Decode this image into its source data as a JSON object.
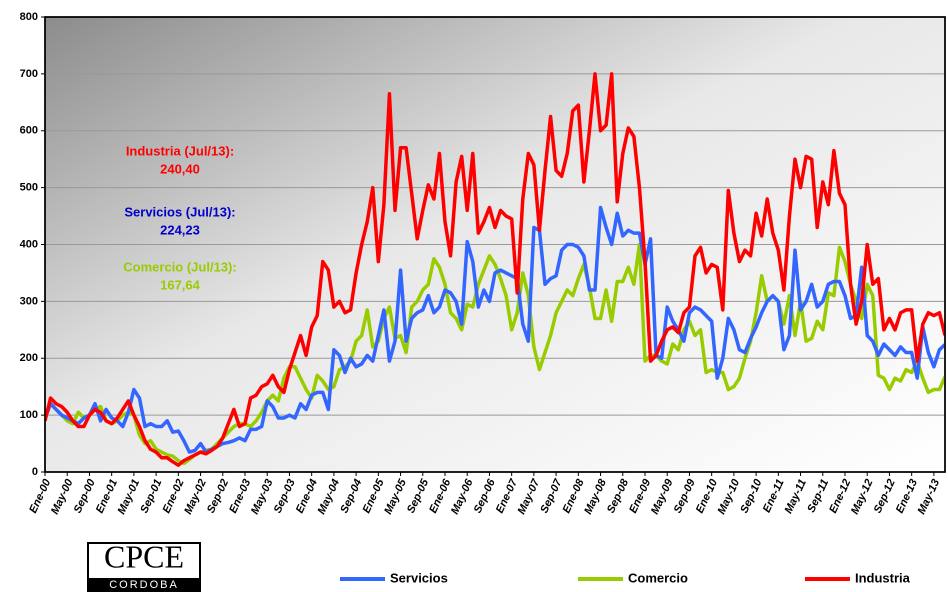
{
  "chart_data": {
    "type": "line",
    "categories": [
      "Ene-00",
      null,
      null,
      null,
      "May-00",
      null,
      null,
      null,
      "Sep-00",
      null,
      null,
      null,
      "Ene-01",
      null,
      null,
      null,
      "May-01",
      null,
      null,
      null,
      "Sep-01",
      null,
      null,
      null,
      "Ene-02",
      null,
      null,
      null,
      "May-02",
      null,
      null,
      null,
      "Sep-02",
      null,
      null,
      null,
      "Ene-03",
      null,
      null,
      null,
      "May-03",
      null,
      null,
      null,
      "Sep-03",
      null,
      null,
      null,
      "Ene-04",
      null,
      null,
      null,
      "May-04",
      null,
      null,
      null,
      "Sep-04",
      null,
      null,
      null,
      "Ene-05",
      null,
      null,
      null,
      "May-05",
      null,
      null,
      null,
      "Sep-05",
      null,
      null,
      null,
      "Ene-06",
      null,
      null,
      null,
      "May-06",
      null,
      null,
      null,
      "Sep-06",
      null,
      null,
      null,
      "Ene-07",
      null,
      null,
      null,
      "May-07",
      null,
      null,
      null,
      "Sep-07",
      null,
      null,
      null,
      "Ene-08",
      null,
      null,
      null,
      "May-08",
      null,
      null,
      null,
      "Sep-08",
      null,
      null,
      null,
      "Ene-09",
      null,
      null,
      null,
      "May-09",
      null,
      null,
      null,
      "Sep-09",
      null,
      null,
      null,
      "Ene-10",
      null,
      null,
      null,
      "May-10",
      null,
      null,
      null,
      "Sep-10",
      null,
      null,
      null,
      "Ene-11",
      null,
      null,
      null,
      "May-11",
      null,
      null,
      null,
      "Sep-11",
      null,
      null,
      null,
      "Ene-12",
      null,
      null,
      null,
      "May-12",
      null,
      null,
      null,
      "Sep-12",
      null,
      null,
      null,
      "Ene-13",
      null,
      null,
      null,
      "May-13",
      null,
      null
    ],
    "series": [
      {
        "name": "Servicios",
        "color": "#3366ff",
        "values": [
          95,
          120,
          110,
          100,
          95,
          90,
          85,
          95,
          100,
          120,
          90,
          110,
          95,
          90,
          80,
          105,
          145,
          130,
          80,
          85,
          80,
          80,
          90,
          70,
          72,
          55,
          35,
          38,
          50,
          35,
          40,
          45,
          50,
          52,
          55,
          60,
          55,
          75,
          75,
          80,
          125,
          115,
          95,
          95,
          100,
          95,
          120,
          110,
          135,
          140,
          140,
          110,
          215,
          205,
          175,
          200,
          185,
          190,
          205,
          195,
          240,
          285,
          195,
          230,
          355,
          230,
          270,
          280,
          285,
          310,
          280,
          290,
          320,
          315,
          300,
          260,
          405,
          370,
          290,
          320,
          300,
          350,
          355,
          350,
          345,
          340,
          260,
          230,
          430,
          425,
          330,
          340,
          345,
          390,
          400,
          400,
          395,
          380,
          320,
          320,
          465,
          430,
          400,
          455,
          415,
          425,
          420,
          420,
          365,
          410,
          205,
          200,
          290,
          265,
          250,
          230,
          280,
          290,
          285,
          275,
          265,
          165,
          200,
          270,
          250,
          215,
          210,
          235,
          255,
          280,
          300,
          310,
          300,
          215,
          240,
          390,
          285,
          300,
          330,
          290,
          300,
          330,
          335,
          335,
          310,
          270,
          275,
          360,
          240,
          230,
          205,
          225,
          215,
          205,
          220,
          210,
          210,
          165,
          255,
          210,
          185,
          215,
          224.23
        ]
      },
      {
        "name": "Comercio",
        "color": "#99cc00",
        "values": [
          95,
          120,
          110,
          100,
          90,
          85,
          105,
          95,
          100,
          110,
          115,
          90,
          85,
          90,
          100,
          105,
          100,
          65,
          50,
          55,
          40,
          35,
          30,
          28,
          20,
          15,
          22,
          30,
          35,
          38,
          40,
          50,
          60,
          70,
          80,
          85,
          85,
          80,
          90,
          105,
          125,
          135,
          125,
          165,
          185,
          185,
          165,
          145,
          130,
          170,
          160,
          145,
          150,
          180,
          185,
          195,
          230,
          240,
          285,
          220,
          230,
          270,
          290,
          235,
          240,
          210,
          290,
          300,
          320,
          330,
          375,
          360,
          330,
          280,
          270,
          250,
          295,
          290,
          330,
          355,
          380,
          365,
          340,
          310,
          250,
          280,
          350,
          310,
          220,
          180,
          210,
          240,
          280,
          300,
          320,
          310,
          340,
          365,
          325,
          270,
          270,
          320,
          265,
          335,
          335,
          360,
          330,
          400,
          195,
          205,
          205,
          195,
          190,
          225,
          215,
          250,
          265,
          240,
          250,
          175,
          180,
          175,
          175,
          145,
          150,
          165,
          200,
          230,
          280,
          345,
          300,
          310,
          300,
          260,
          310,
          240,
          300,
          230,
          235,
          265,
          250,
          315,
          310,
          395,
          370,
          330,
          300,
          270,
          330,
          310,
          170,
          165,
          145,
          165,
          160,
          180,
          175,
          195,
          165,
          140,
          145,
          145,
          167.64
        ]
      },
      {
        "name": "Industria",
        "color": "#ff0000",
        "values": [
          90,
          130,
          120,
          115,
          105,
          90,
          80,
          80,
          100,
          110,
          105,
          90,
          85,
          95,
          110,
          125,
          100,
          80,
          55,
          40,
          35,
          25,
          25,
          18,
          12,
          20,
          25,
          30,
          35,
          32,
          38,
          45,
          60,
          85,
          110,
          80,
          85,
          130,
          135,
          150,
          155,
          170,
          150,
          140,
          180,
          210,
          240,
          205,
          255,
          275,
          370,
          355,
          290,
          300,
          280,
          285,
          350,
          400,
          440,
          500,
          370,
          470,
          665,
          460,
          570,
          570,
          490,
          410,
          460,
          505,
          480,
          560,
          440,
          380,
          510,
          555,
          460,
          560,
          420,
          440,
          465,
          430,
          460,
          450,
          445,
          315,
          480,
          560,
          540,
          425,
          530,
          625,
          530,
          520,
          560,
          635,
          645,
          510,
          600,
          700,
          600,
          610,
          700,
          475,
          560,
          605,
          590,
          500,
          370,
          195,
          205,
          230,
          250,
          255,
          245,
          280,
          290,
          380,
          395,
          350,
          365,
          360,
          285,
          495,
          420,
          370,
          390,
          380,
          455,
          415,
          480,
          420,
          390,
          320,
          450,
          550,
          500,
          555,
          550,
          430,
          510,
          470,
          565,
          490,
          470,
          330,
          260,
          300,
          400,
          330,
          340,
          250,
          270,
          250,
          280,
          285,
          285,
          195,
          260,
          280,
          275,
          280,
          240.4
        ]
      }
    ],
    "ylim": [
      0,
      800
    ],
    "yticks": [
      0,
      100,
      200,
      300,
      400,
      500,
      600,
      700,
      800
    ],
    "grid": true,
    "legend": "bottom",
    "annotations": [
      {
        "text": "Industria (Jul/13):",
        "value": "240,40",
        "color": "#ff0000"
      },
      {
        "text": "Servicios (Jul/13):",
        "value": "224,23",
        "color": "#0000cc"
      },
      {
        "text": "Comercio (Jul/13):",
        "value": "167,64",
        "color": "#99cc00"
      }
    ]
  },
  "logo": {
    "name": "CPCE",
    "sub": "CORDOBA"
  }
}
